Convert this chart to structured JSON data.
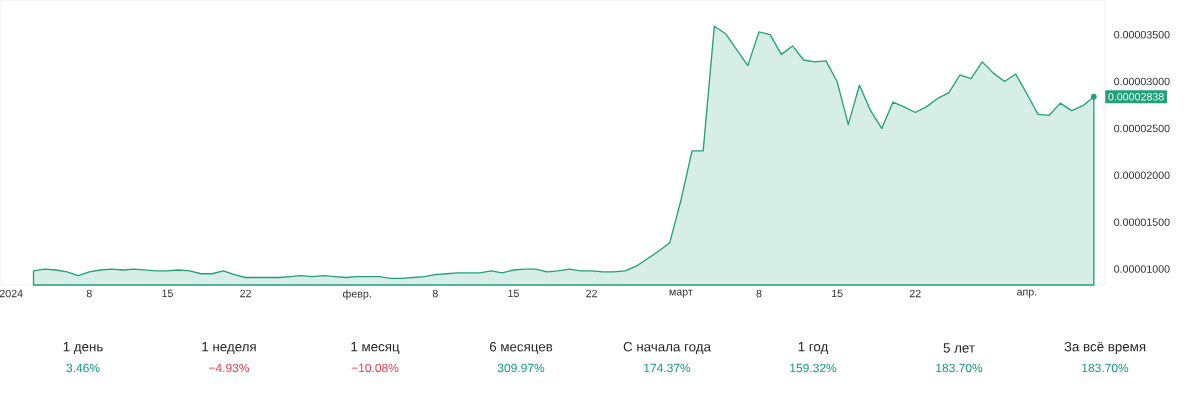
{
  "chart_data": [
    {
      "type": "area",
      "color": "#22a07a",
      "x": [
        "2024-01-03",
        "2024-01-04",
        "2024-01-05",
        "2024-01-06",
        "2024-01-07",
        "2024-01-08",
        "2024-01-09",
        "2024-01-10",
        "2024-01-11",
        "2024-01-12",
        "2024-01-13",
        "2024-01-14",
        "2024-01-15",
        "2024-01-16",
        "2024-01-17",
        "2024-01-18",
        "2024-01-19",
        "2024-01-20",
        "2024-01-21",
        "2024-01-22",
        "2024-01-23",
        "2024-01-24",
        "2024-01-25",
        "2024-01-26",
        "2024-01-27",
        "2024-01-28",
        "2024-01-29",
        "2024-01-30",
        "2024-01-31",
        "2024-02-01",
        "2024-02-02",
        "2024-02-03",
        "2024-02-04",
        "2024-02-05",
        "2024-02-06",
        "2024-02-07",
        "2024-02-08",
        "2024-02-09",
        "2024-02-10",
        "2024-02-11",
        "2024-02-12",
        "2024-02-13",
        "2024-02-14",
        "2024-02-15",
        "2024-02-16",
        "2024-02-17",
        "2024-02-18",
        "2024-02-19",
        "2024-02-20",
        "2024-02-21",
        "2024-02-22",
        "2024-02-23",
        "2024-02-24",
        "2024-02-25",
        "2024-02-26",
        "2024-02-27",
        "2024-02-28",
        "2024-02-29",
        "2024-03-01",
        "2024-03-02",
        "2024-03-03",
        "2024-03-04",
        "2024-03-05",
        "2024-03-06",
        "2024-03-07",
        "2024-03-08",
        "2024-03-09",
        "2024-03-10",
        "2024-03-11",
        "2024-03-12",
        "2024-03-13",
        "2024-03-14",
        "2024-03-15",
        "2024-03-16",
        "2024-03-17",
        "2024-03-18",
        "2024-03-19",
        "2024-03-20",
        "2024-03-21",
        "2024-03-22",
        "2024-03-23",
        "2024-03-24",
        "2024-03-25",
        "2024-03-26",
        "2024-03-27",
        "2024-03-28",
        "2024-03-29",
        "2024-03-30",
        "2024-03-31",
        "2024-04-01",
        "2024-04-02",
        "2024-04-03",
        "2024-04-04",
        "2024-04-05",
        "2024-04-06",
        "2024-04-07"
      ],
      "values": [
        9.8e-06,
        1e-05,
        9.9e-06,
        9.7e-06,
        9.3e-06,
        9.7e-06,
        9.9e-06,
        1e-05,
        9.9e-06,
        1e-05,
        9.9e-06,
        9.8e-06,
        9.8e-06,
        9.9e-06,
        9.8e-06,
        9.5e-06,
        9.5e-06,
        9.8e-06,
        9.4e-06,
        9.1e-06,
        9.1e-06,
        9.1e-06,
        9.1e-06,
        9.2e-06,
        9.3e-06,
        9.2e-06,
        9.3e-06,
        9.2e-06,
        9.1e-06,
        9.2e-06,
        9.2e-06,
        9.2e-06,
        9e-06,
        9e-06,
        9.1e-06,
        9.2e-06,
        9.4e-06,
        9.5e-06,
        9.6e-06,
        9.6e-06,
        9.6e-06,
        9.8e-06,
        9.6e-06,
        9.9e-06,
        1e-05,
        1e-05,
        9.7e-06,
        9.8e-06,
        1e-05,
        9.8e-06,
        9.8e-06,
        9.7e-06,
        9.7e-06,
        9.8e-06,
        1.03e-05,
        1.11e-05,
        1.19e-05,
        1.28e-05,
        1.73e-05,
        2.26e-05,
        2.26e-05,
        3.59e-05,
        3.51e-05,
        3.34e-05,
        3.17e-05,
        3.53e-05,
        3.5e-05,
        3.29e-05,
        3.38e-05,
        3.23e-05,
        3.21e-05,
        3.22e-05,
        3e-05,
        2.54e-05,
        2.96e-05,
        2.69e-05,
        2.5e-05,
        2.78e-05,
        2.73e-05,
        2.67e-05,
        2.73e-05,
        2.82e-05,
        2.88e-05,
        3.07e-05,
        3.03e-05,
        3.21e-05,
        3.09e-05,
        3e-05,
        3.08e-05,
        2.87e-05,
        2.65e-05,
        2.64e-05,
        2.77e-05,
        2.69e-05,
        2.74e-05,
        2.838e-05
      ],
      "xticks": [
        {
          "value": "2024-01-01",
          "label": "2024"
        },
        {
          "value": "2024-01-08",
          "label": "8"
        },
        {
          "value": "2024-01-15",
          "label": "15"
        },
        {
          "value": "2024-01-22",
          "label": "22"
        },
        {
          "value": "2024-02-01",
          "label": "февр."
        },
        {
          "value": "2024-02-08",
          "label": "8"
        },
        {
          "value": "2024-02-15",
          "label": "15"
        },
        {
          "value": "2024-02-22",
          "label": "22"
        },
        {
          "value": "2024-03-01",
          "label": "март"
        },
        {
          "value": "2024-03-08",
          "label": "8"
        },
        {
          "value": "2024-03-15",
          "label": "15"
        },
        {
          "value": "2024-03-22",
          "label": "22"
        },
        {
          "value": "2024-04-01",
          "label": "апр."
        }
      ],
      "xlim": [
        "2023-12-31",
        "2024-04-08"
      ],
      "ylim": [
        8.3e-06,
        3.87e-05
      ],
      "yticks": [
        {
          "value": 1e-05,
          "label": "0.00001000"
        },
        {
          "value": 1.5e-05,
          "label": "0.00001500"
        },
        {
          "value": 2e-05,
          "label": "0.00002000"
        },
        {
          "value": 2.5e-05,
          "label": "0.00002500"
        },
        {
          "value": 3e-05,
          "label": "0.00003000"
        },
        {
          "value": 3.5e-05,
          "label": "0.00003500"
        }
      ],
      "annotations": [
        {
          "text": "0.00002838",
          "x": "2024-04-07",
          "y": 2.838e-05
        }
      ]
    },
    {
      "type": "other",
      "categories": [
        "1 день",
        "1 неделя",
        "1 месяц",
        "6 месяцев",
        "С начала года",
        "1 год",
        "5 лет",
        "За всё время"
      ],
      "values": [
        3.46,
        -4.93,
        -10.08,
        309.97,
        174.37,
        159.32,
        183.7,
        183.7
      ],
      "value_labels": [
        "3.46%",
        "−4.93%",
        "−10.08%",
        "309.97%",
        "174.37%",
        "159.32%",
        "183.70%",
        "183.70%"
      ],
      "colors": [
        "#089981",
        "#f23645",
        "#f23645",
        "#089981",
        "#089981",
        "#089981",
        "#089981",
        "#089981"
      ]
    }
  ]
}
